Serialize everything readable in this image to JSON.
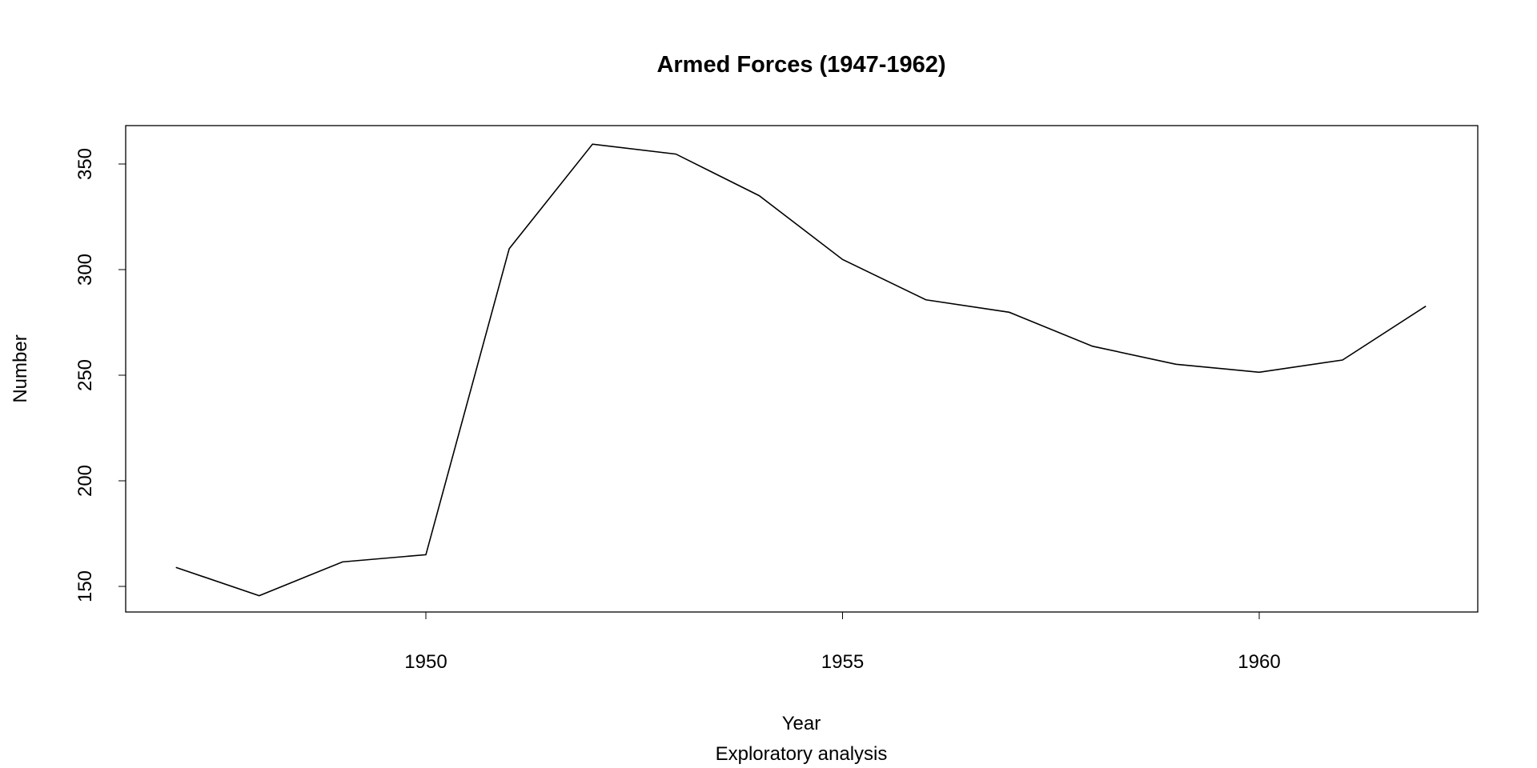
{
  "chart_data": {
    "type": "line",
    "title": "Armed Forces (1947-1962)",
    "xlabel": "Year",
    "ylabel": "Number",
    "subtitle": "Exploratory analysis",
    "x": [
      1947,
      1948,
      1949,
      1950,
      1951,
      1952,
      1953,
      1954,
      1955,
      1956,
      1957,
      1958,
      1959,
      1960,
      1961,
      1962
    ],
    "series": [
      {
        "name": "Armed.Forces",
        "values": [
          159.0,
          145.6,
          161.6,
          165.0,
          309.9,
          359.4,
          354.7,
          335.0,
          304.8,
          285.7,
          279.8,
          263.7,
          255.2,
          251.4,
          257.2,
          282.7
        ],
        "color": "#000000"
      }
    ],
    "xticks": [
      "1950",
      "1955",
      "1960"
    ],
    "yticks": [
      "150",
      "200",
      "250",
      "300",
      "350"
    ],
    "grid": false
  }
}
